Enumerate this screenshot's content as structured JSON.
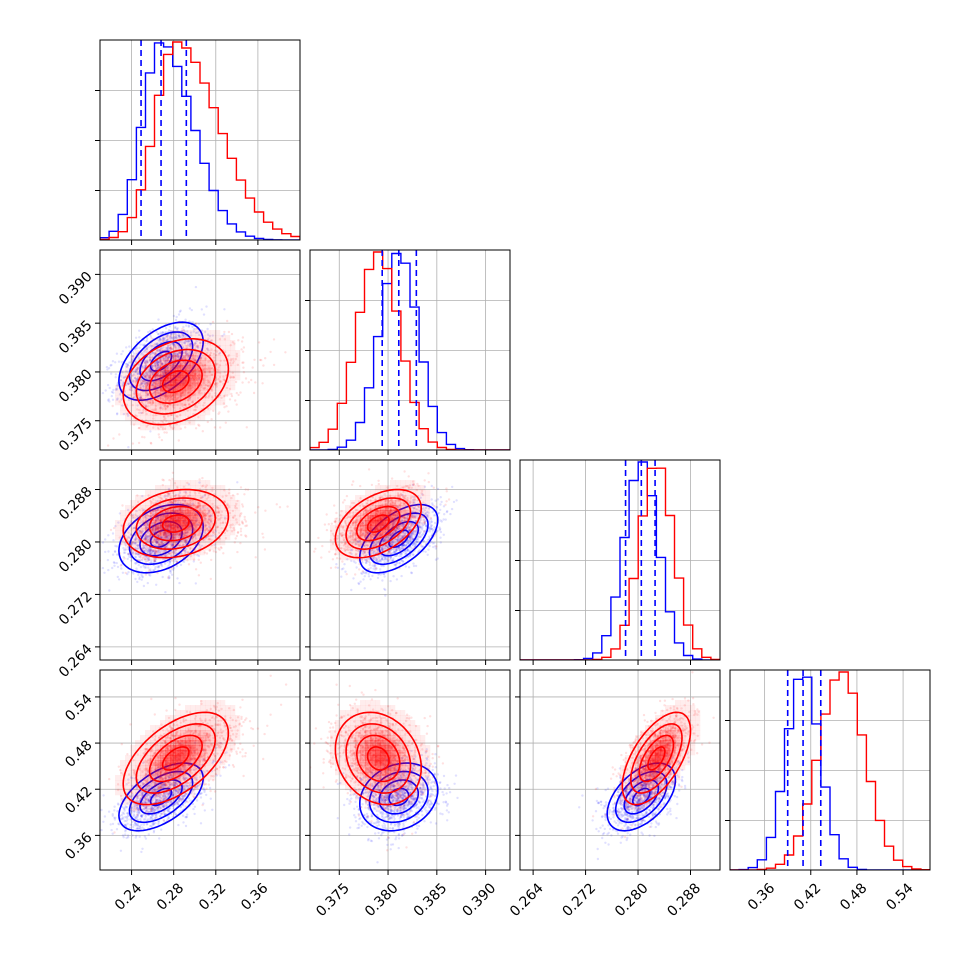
{
  "chart_data": {
    "type": "corner",
    "title": "",
    "params": [
      {
        "range": [
          0.21,
          0.4
        ],
        "ticks": [
          0.24,
          0.28,
          0.32,
          0.36
        ],
        "tick_labels": [
          "0.24",
          "0.28",
          "0.32",
          "0.36"
        ]
      },
      {
        "range": [
          0.372,
          0.3925
        ],
        "ticks": [
          0.375,
          0.38,
          0.385,
          0.39
        ],
        "tick_labels": [
          "0.375",
          "0.380",
          "0.385",
          "0.390"
        ]
      },
      {
        "range": [
          0.262,
          0.2925
        ],
        "ticks": [
          0.264,
          0.272,
          0.28,
          0.288
        ],
        "tick_labels": [
          "0.264",
          "0.272",
          "0.280",
          "0.288"
        ]
      },
      {
        "range": [
          0.315,
          0.575
        ],
        "ticks": [
          0.36,
          0.42,
          0.48,
          0.54
        ],
        "tick_labels": [
          "0.36",
          "0.42",
          "0.48",
          "0.54"
        ]
      }
    ],
    "series": [
      {
        "color": "#0000ff",
        "means": [
          0.268,
          0.3811,
          0.2805,
          0.41
        ],
        "sds": [
          0.02,
          0.002,
          0.0026,
          0.022
        ],
        "corr": [
          [
            1,
            0.5,
            0.35,
            0.55
          ],
          [
            0.5,
            1,
            0.55,
            0.2
          ],
          [
            0.35,
            0.55,
            1,
            0.5
          ],
          [
            0.55,
            0.2,
            0.5,
            1
          ]
        ],
        "quantiles": [
          [
            0.249,
            0.268,
            0.292
          ],
          [
            0.3794,
            0.3811,
            0.3829
          ],
          [
            0.2781,
            0.2805,
            0.2826
          ],
          [
            0.39,
            0.41,
            0.433
          ]
        ]
      },
      {
        "color": "#ff0000",
        "means": [
          0.282,
          0.379,
          0.2828,
          0.46
        ],
        "sds": [
          0.025,
          0.0022,
          0.0026,
          0.03
        ],
        "corr": [
          [
            1,
            0.3,
            0.2,
            0.55
          ],
          [
            0.3,
            1,
            0.45,
            -0.2
          ],
          [
            0.2,
            0.45,
            1,
            0.6
          ],
          [
            0.55,
            -0.2,
            0.6,
            1
          ]
        ],
        "quantiles": []
      }
    ],
    "grid": true,
    "legend": "none"
  }
}
